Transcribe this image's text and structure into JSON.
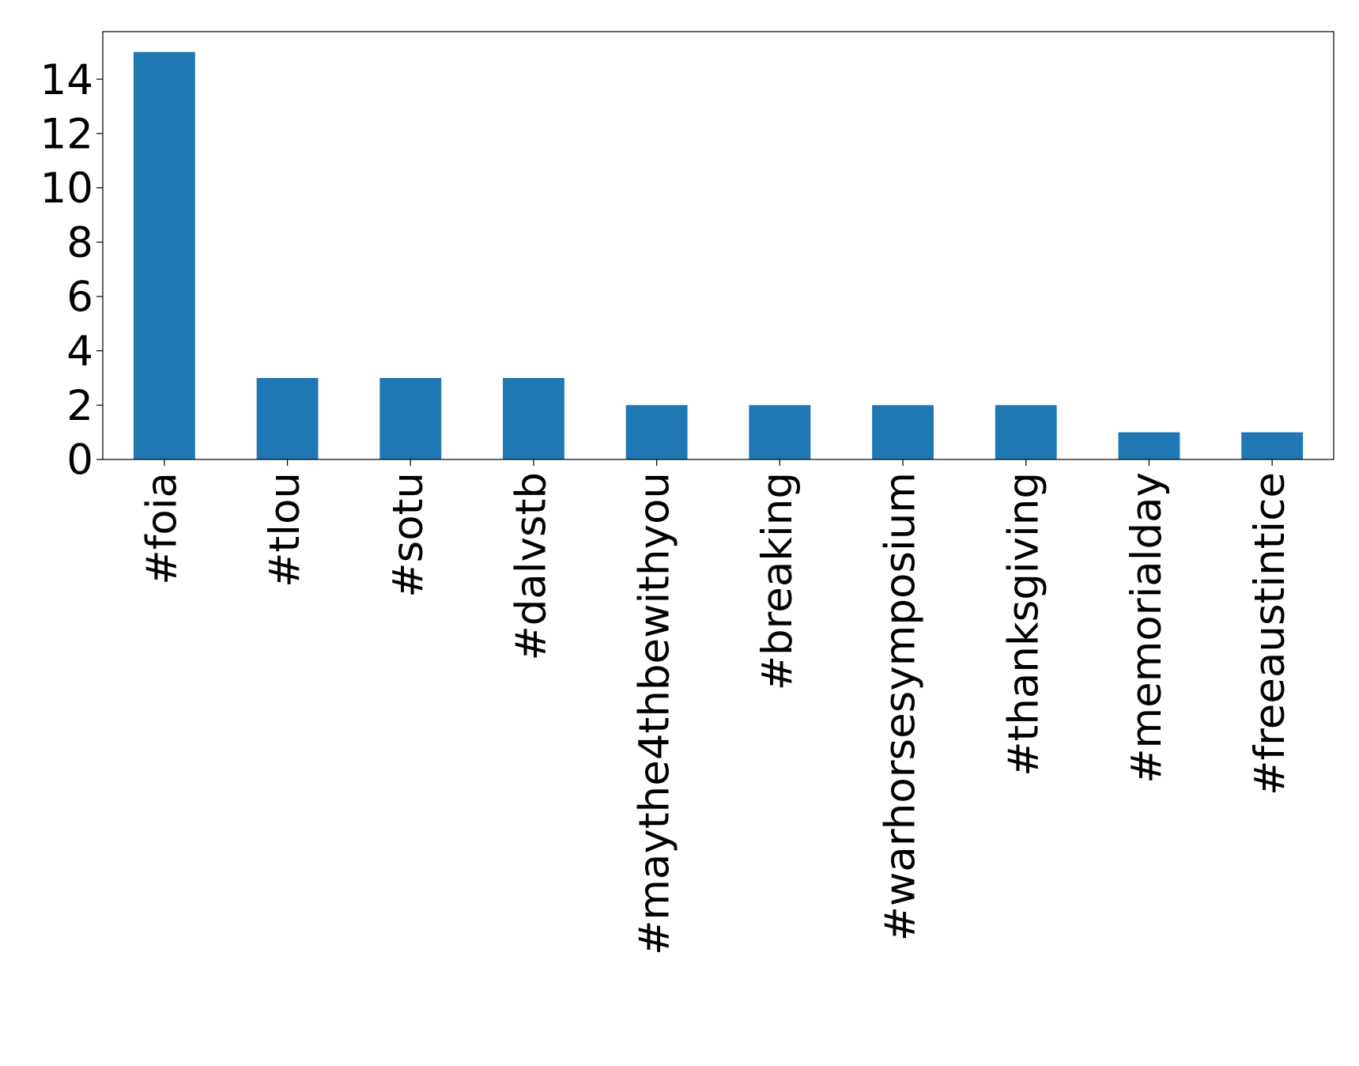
{
  "chart_data": {
    "type": "bar",
    "categories": [
      "#foia",
      "#tlou",
      "#sotu",
      "#dalvstb",
      "#maythe4thbewithyou",
      "#breaking",
      "#warhorsesymposium",
      "#thanksgiving",
      "#memorialday",
      "#freeaustintice"
    ],
    "values": [
      15,
      3,
      3,
      3,
      2,
      2,
      2,
      2,
      1,
      1
    ],
    "color": "#1f77b4",
    "ylim": [
      0,
      15.75
    ],
    "yticks": [
      0,
      2,
      4,
      6,
      8,
      10,
      12,
      14
    ],
    "grid": false
  }
}
